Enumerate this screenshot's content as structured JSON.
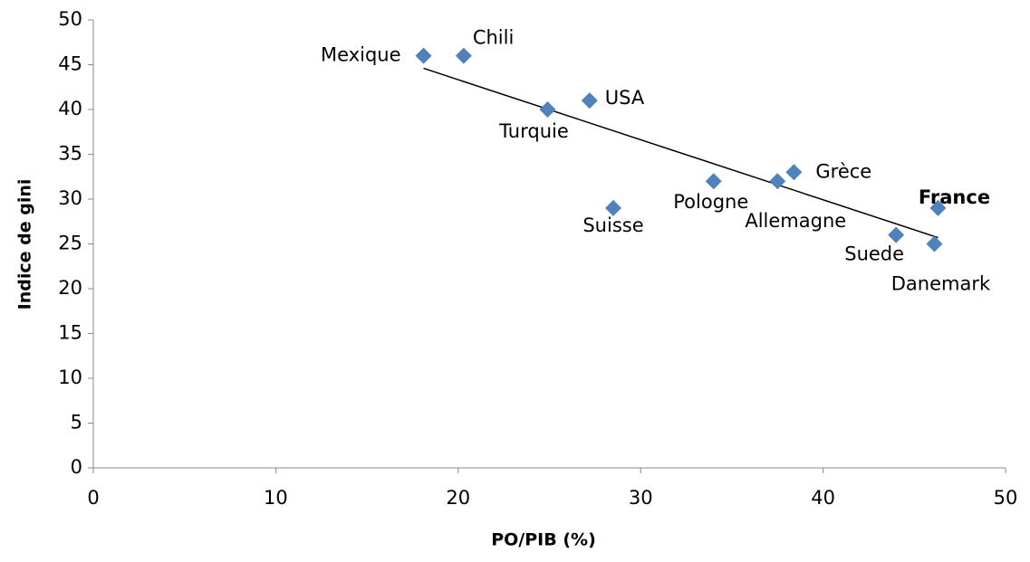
{
  "chart_data": {
    "type": "scatter",
    "x_label": "PO/PIB  (%)",
    "y_label": "Indice de  gini",
    "points": [
      {
        "label": "Mexique",
        "x": 18.1,
        "y": 46
      },
      {
        "label": "Chili",
        "x": 20.3,
        "y": 46
      },
      {
        "label": "Turquie",
        "x": 24.9,
        "y": 40
      },
      {
        "label": "USA",
        "x": 27.2,
        "y": 41
      },
      {
        "label": "Suisse",
        "x": 28.5,
        "y": 29
      },
      {
        "label": "Pologne",
        "x": 34.0,
        "y": 32
      },
      {
        "label": "Allemagne",
        "x": 37.5,
        "y": 32
      },
      {
        "label": "Grèce",
        "x": 38.4,
        "y": 33
      },
      {
        "label": "Suede",
        "x": 44.0,
        "y": 26
      },
      {
        "label": "Danemark",
        "x": 46.1,
        "y": 25
      },
      {
        "label": "France",
        "x": 46.3,
        "y": 29,
        "bold": true
      }
    ],
    "color": "#4f81bd",
    "trendline": {
      "x": [
        18.1,
        46.3
      ],
      "y": [
        44.6,
        25.7
      ]
    },
    "xlim": [
      0,
      50
    ],
    "xticks": [
      0,
      10,
      20,
      30,
      40,
      50
    ],
    "ylim": [
      0,
      50
    ],
    "yticks": [
      0,
      5,
      10,
      15,
      20,
      25,
      30,
      35,
      40,
      45,
      50
    ],
    "grid": false
  }
}
